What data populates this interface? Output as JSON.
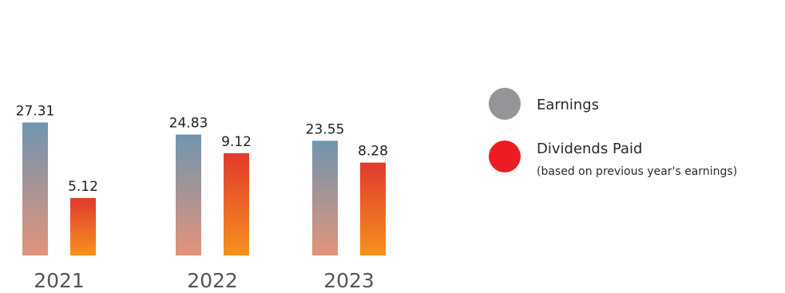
{
  "chart_data": {
    "type": "bar",
    "categories": [
      "2021",
      "2022",
      "2023"
    ],
    "series": [
      {
        "name": "Earnings",
        "values": [
          27.31,
          24.83,
          23.55
        ]
      },
      {
        "name": "Dividends Paid",
        "values": [
          5.12,
          9.12,
          8.28
        ]
      }
    ],
    "data_labels": [
      [
        "27.31",
        "24.83",
        "23.55"
      ],
      [
        "5.12",
        "9.12",
        "8.28"
      ]
    ],
    "legend": {
      "position": "right",
      "items": [
        {
          "label": "Earnings",
          "note": "",
          "color": "#939598"
        },
        {
          "label": "Dividends Paid",
          "note": "(based on previous year's earnings)",
          "color": "#ed1c24"
        }
      ]
    },
    "colors": {
      "earnings_top": "#7095b0",
      "earnings_bottom": "#e2937a",
      "dividends_top": "#e03a2e",
      "dividends_bottom": "#f7901e"
    },
    "grid": false,
    "title": "",
    "xlabel": "",
    "ylabel": ""
  }
}
